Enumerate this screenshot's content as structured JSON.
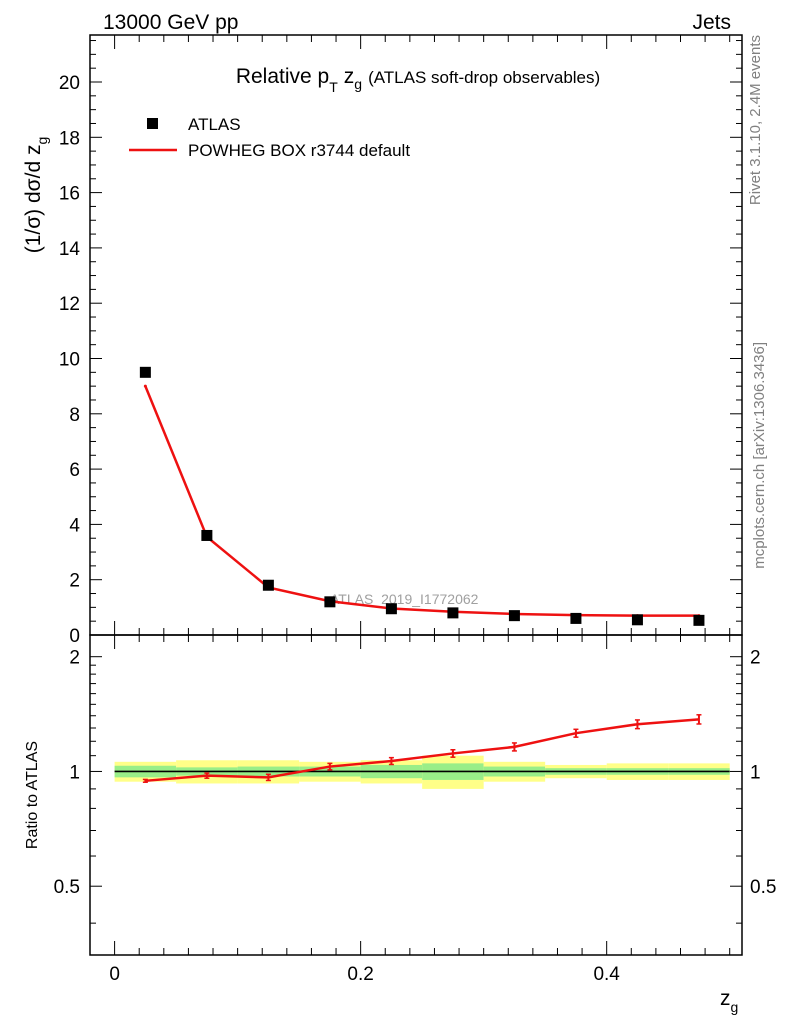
{
  "header": {
    "left": "13000 GeV pp",
    "right": "Jets"
  },
  "side_text": {
    "rivet": "Rivet 3.1.10,  2.4M events",
    "mcplots": "mcplots.cern.ch [arXiv:1306.3436]"
  },
  "colors": {
    "data": "#000000",
    "mc": "#ee1111",
    "band_inner": "#99ee88",
    "band_outer": "#ffff88",
    "line": "#000000"
  },
  "chart_data": [
    {
      "type": "scatter",
      "title": {
        "prefix": "Relative p",
        "sub_T": "T",
        "z": "z",
        "sub_g": "g",
        "suffix": "(ATLAS soft-drop observables)"
      },
      "ylabel": {
        "main": "(1/σ) dσ/d z",
        "sub": "g"
      },
      "watermark": "ATLAS_2019_I1772062",
      "xlim": [
        -0.02,
        0.51
      ],
      "ylim": [
        0,
        21.7
      ],
      "yticks": [
        0,
        2,
        4,
        6,
        8,
        10,
        12,
        14,
        16,
        18,
        20
      ],
      "legend": [
        "ATLAS",
        "POWHEG BOX r3744 default"
      ],
      "legend_position": "top-left",
      "x_edges": [
        0.0,
        0.05,
        0.1,
        0.15,
        0.2,
        0.25,
        0.3,
        0.35,
        0.4,
        0.45,
        0.5
      ],
      "x": [
        0.025,
        0.075,
        0.125,
        0.175,
        0.225,
        0.275,
        0.325,
        0.375,
        0.425,
        0.475
      ],
      "series": [
        {
          "name": "ATLAS",
          "values": [
            9.5,
            3.6,
            1.8,
            1.2,
            0.95,
            0.8,
            0.7,
            0.6,
            0.55,
            0.53
          ]
        },
        {
          "name": "POWHEG BOX r3744 default",
          "values": [
            9.0,
            3.55,
            1.72,
            1.22,
            0.96,
            0.84,
            0.76,
            0.72,
            0.7,
            0.7
          ]
        }
      ]
    },
    {
      "type": "line",
      "ylabel": "Ratio to ATLAS",
      "xlabel": {
        "main": "z",
        "sub": "g"
      },
      "xlim": [
        -0.02,
        0.51
      ],
      "ylim": [
        0.33,
        2.28
      ],
      "yticks": [
        0.5,
        1,
        2
      ],
      "ytick_labels": [
        "0.5",
        "1",
        "2"
      ],
      "xticks": [
        0,
        0.2,
        0.4
      ],
      "xtick_labels": [
        "0",
        "0.2",
        "0.4"
      ],
      "x_edges": [
        0.0,
        0.05,
        0.1,
        0.15,
        0.2,
        0.25,
        0.3,
        0.35,
        0.4,
        0.45,
        0.5
      ],
      "x": [
        0.025,
        0.075,
        0.125,
        0.175,
        0.225,
        0.275,
        0.325,
        0.375,
        0.425,
        0.475
      ],
      "ratio": [
        0.945,
        0.975,
        0.965,
        1.03,
        1.065,
        1.115,
        1.16,
        1.26,
        1.33,
        1.37
      ],
      "ratio_err": [
        0.008,
        0.015,
        0.018,
        0.02,
        0.022,
        0.025,
        0.028,
        0.03,
        0.035,
        0.038
      ],
      "band_inner": [
        0.035,
        0.025,
        0.03,
        0.03,
        0.04,
        0.05,
        0.03,
        0.02,
        0.02,
        0.02
      ],
      "band_outer": [
        0.06,
        0.07,
        0.07,
        0.06,
        0.07,
        0.1,
        0.06,
        0.04,
        0.05,
        0.05
      ]
    }
  ]
}
